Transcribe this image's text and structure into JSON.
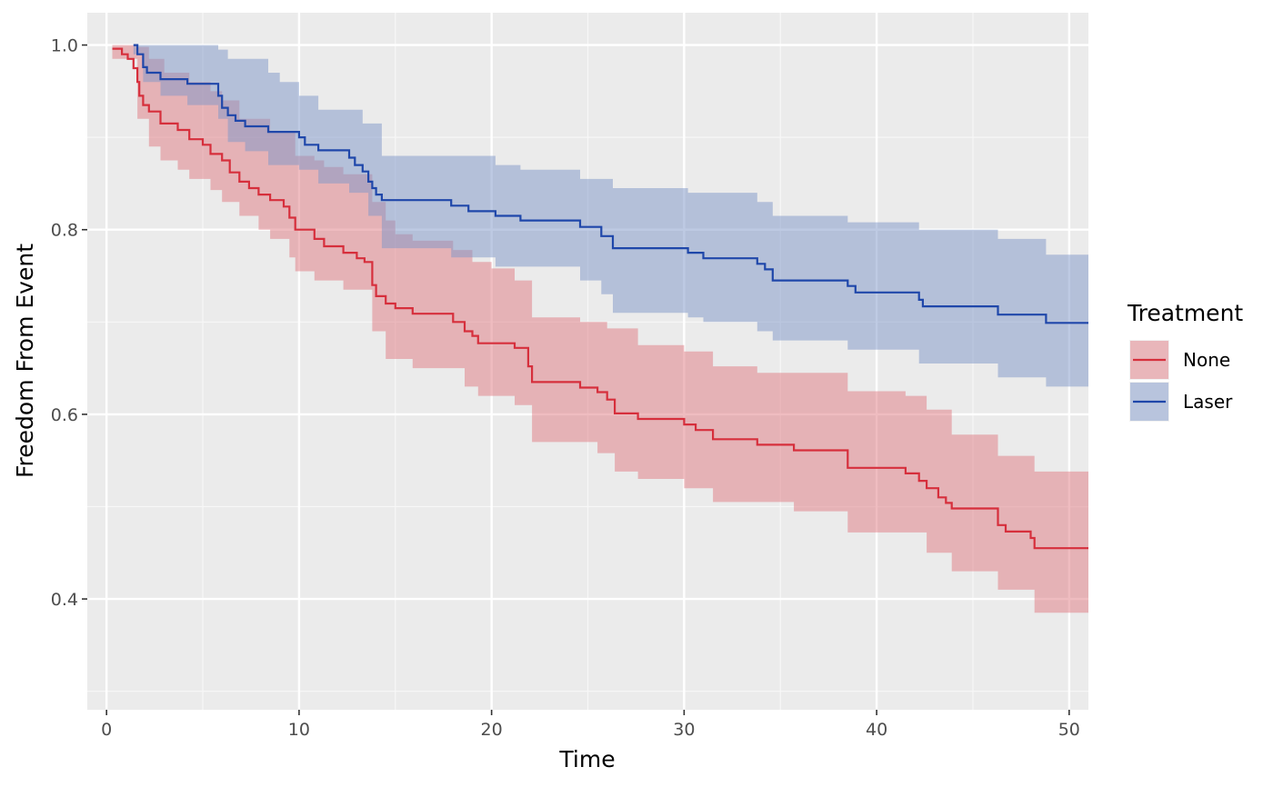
{
  "chart_data": {
    "type": "line",
    "subtype": "kaplan-meier step curves with confidence bands",
    "xlabel": "Time",
    "ylabel": "Freedom From Event",
    "xlim": [
      -1,
      51
    ],
    "ylim": [
      0.28,
      1.035
    ],
    "x_ticks": [
      0,
      10,
      20,
      30,
      40,
      50
    ],
    "x_tick_labels": [
      "0",
      "10",
      "20",
      "30",
      "40",
      "50"
    ],
    "y_ticks": [
      0.4,
      0.6,
      0.8,
      1.0
    ],
    "y_tick_labels": [
      "0.4",
      "0.6",
      "0.8",
      "1.0"
    ],
    "grid": true,
    "panel_background": "#ebebeb",
    "legend": {
      "title": "Treatment",
      "placement": "right",
      "entries": [
        "None",
        "Laser"
      ]
    },
    "series": [
      {
        "name": "None",
        "color": "#d62f3c",
        "band_color": "#e07a82",
        "steps": [
          [
            0.3,
            0.996
          ],
          [
            0.8,
            0.99
          ],
          [
            1.1,
            0.985
          ],
          [
            1.4,
            0.975
          ],
          [
            1.6,
            0.96
          ],
          [
            1.7,
            0.945
          ],
          [
            1.9,
            0.935
          ],
          [
            2.2,
            0.928
          ],
          [
            2.8,
            0.915
          ],
          [
            3.7,
            0.908
          ],
          [
            4.3,
            0.898
          ],
          [
            5.0,
            0.892
          ],
          [
            5.4,
            0.882
          ],
          [
            6.0,
            0.875
          ],
          [
            6.4,
            0.862
          ],
          [
            6.9,
            0.852
          ],
          [
            7.4,
            0.845
          ],
          [
            7.9,
            0.838
          ],
          [
            8.5,
            0.832
          ],
          [
            9.2,
            0.825
          ],
          [
            9.5,
            0.813
          ],
          [
            9.8,
            0.8
          ],
          [
            10.8,
            0.79
          ],
          [
            11.3,
            0.782
          ],
          [
            12.3,
            0.775
          ],
          [
            13.0,
            0.769
          ],
          [
            13.4,
            0.765
          ],
          [
            13.8,
            0.74
          ],
          [
            14.0,
            0.728
          ],
          [
            14.5,
            0.72
          ],
          [
            15.0,
            0.715
          ],
          [
            15.9,
            0.709
          ],
          [
            18.0,
            0.7
          ],
          [
            18.6,
            0.69
          ],
          [
            19.0,
            0.685
          ],
          [
            19.3,
            0.677
          ],
          [
            21.2,
            0.672
          ],
          [
            21.9,
            0.652
          ],
          [
            22.1,
            0.635
          ],
          [
            24.6,
            0.629
          ],
          [
            25.5,
            0.624
          ],
          [
            26.0,
            0.616
          ],
          [
            26.4,
            0.601
          ],
          [
            27.6,
            0.595
          ],
          [
            30.0,
            0.589
          ],
          [
            30.6,
            0.583
          ],
          [
            31.5,
            0.573
          ],
          [
            33.8,
            0.567
          ],
          [
            35.7,
            0.561
          ],
          [
            38.5,
            0.542
          ],
          [
            41.5,
            0.536
          ],
          [
            42.2,
            0.528
          ],
          [
            42.6,
            0.52
          ],
          [
            43.2,
            0.51
          ],
          [
            43.6,
            0.504
          ],
          [
            43.9,
            0.498
          ],
          [
            46.3,
            0.48
          ],
          [
            46.7,
            0.473
          ],
          [
            48.0,
            0.466
          ],
          [
            48.2,
            0.455
          ],
          [
            51.0,
            0.455
          ]
        ],
        "band_upper": [
          [
            0.3,
            1.0
          ],
          [
            1.6,
            0.998
          ],
          [
            2.2,
            0.985
          ],
          [
            3.0,
            0.97
          ],
          [
            4.3,
            0.96
          ],
          [
            5.4,
            0.95
          ],
          [
            6.0,
            0.94
          ],
          [
            6.9,
            0.92
          ],
          [
            8.5,
            0.905
          ],
          [
            9.8,
            0.88
          ],
          [
            10.8,
            0.875
          ],
          [
            11.3,
            0.868
          ],
          [
            12.3,
            0.86
          ],
          [
            13.8,
            0.83
          ],
          [
            14.5,
            0.81
          ],
          [
            15.0,
            0.795
          ],
          [
            15.9,
            0.788
          ],
          [
            18.0,
            0.778
          ],
          [
            19.0,
            0.765
          ],
          [
            20.0,
            0.758
          ],
          [
            21.2,
            0.745
          ],
          [
            22.1,
            0.705
          ],
          [
            24.6,
            0.7
          ],
          [
            26.0,
            0.693
          ],
          [
            27.6,
            0.675
          ],
          [
            30.0,
            0.668
          ],
          [
            31.5,
            0.652
          ],
          [
            33.8,
            0.645
          ],
          [
            38.5,
            0.625
          ],
          [
            41.5,
            0.62
          ],
          [
            42.6,
            0.605
          ],
          [
            43.9,
            0.578
          ],
          [
            46.3,
            0.555
          ],
          [
            48.2,
            0.538
          ],
          [
            51.0,
            0.538
          ]
        ],
        "band_lower": [
          [
            0.3,
            0.985
          ],
          [
            1.6,
            0.92
          ],
          [
            2.2,
            0.89
          ],
          [
            2.8,
            0.875
          ],
          [
            3.7,
            0.865
          ],
          [
            4.3,
            0.855
          ],
          [
            5.4,
            0.843
          ],
          [
            6.0,
            0.83
          ],
          [
            6.9,
            0.815
          ],
          [
            7.9,
            0.8
          ],
          [
            8.5,
            0.79
          ],
          [
            9.5,
            0.77
          ],
          [
            9.8,
            0.755
          ],
          [
            10.8,
            0.745
          ],
          [
            12.3,
            0.735
          ],
          [
            13.8,
            0.69
          ],
          [
            14.5,
            0.66
          ],
          [
            15.9,
            0.65
          ],
          [
            18.6,
            0.63
          ],
          [
            19.3,
            0.62
          ],
          [
            21.2,
            0.61
          ],
          [
            22.1,
            0.57
          ],
          [
            25.5,
            0.558
          ],
          [
            26.4,
            0.538
          ],
          [
            27.6,
            0.53
          ],
          [
            30.0,
            0.52
          ],
          [
            31.5,
            0.505
          ],
          [
            35.7,
            0.495
          ],
          [
            38.5,
            0.472
          ],
          [
            42.6,
            0.45
          ],
          [
            43.9,
            0.43
          ],
          [
            46.3,
            0.41
          ],
          [
            48.2,
            0.385
          ],
          [
            51.0,
            0.385
          ]
        ]
      },
      {
        "name": "Laser",
        "color": "#1f47aa",
        "band_color": "#7e95c8",
        "steps": [
          [
            1.4,
            1.0
          ],
          [
            1.6,
            0.99
          ],
          [
            1.9,
            0.976
          ],
          [
            2.1,
            0.97
          ],
          [
            2.8,
            0.963
          ],
          [
            4.2,
            0.958
          ],
          [
            5.8,
            0.945
          ],
          [
            6.0,
            0.932
          ],
          [
            6.3,
            0.924
          ],
          [
            6.7,
            0.918
          ],
          [
            7.2,
            0.912
          ],
          [
            8.4,
            0.906
          ],
          [
            10.0,
            0.9
          ],
          [
            10.3,
            0.892
          ],
          [
            11.0,
            0.886
          ],
          [
            12.6,
            0.878
          ],
          [
            12.9,
            0.87
          ],
          [
            13.3,
            0.863
          ],
          [
            13.6,
            0.852
          ],
          [
            13.8,
            0.845
          ],
          [
            14.0,
            0.838
          ],
          [
            14.3,
            0.832
          ],
          [
            17.9,
            0.826
          ],
          [
            18.8,
            0.82
          ],
          [
            20.2,
            0.815
          ],
          [
            21.5,
            0.81
          ],
          [
            24.6,
            0.803
          ],
          [
            25.7,
            0.793
          ],
          [
            26.3,
            0.78
          ],
          [
            30.2,
            0.775
          ],
          [
            31.0,
            0.769
          ],
          [
            33.8,
            0.763
          ],
          [
            34.2,
            0.757
          ],
          [
            34.6,
            0.745
          ],
          [
            38.5,
            0.739
          ],
          [
            38.9,
            0.732
          ],
          [
            42.2,
            0.724
          ],
          [
            42.4,
            0.717
          ],
          [
            46.3,
            0.708
          ],
          [
            48.8,
            0.699
          ],
          [
            51.0,
            0.699
          ]
        ],
        "band_upper": [
          [
            1.4,
            1.0
          ],
          [
            5.8,
            0.995
          ],
          [
            6.3,
            0.985
          ],
          [
            8.4,
            0.97
          ],
          [
            9.0,
            0.96
          ],
          [
            10.0,
            0.945
          ],
          [
            11.0,
            0.93
          ],
          [
            13.3,
            0.915
          ],
          [
            14.3,
            0.88
          ],
          [
            20.2,
            0.87
          ],
          [
            21.5,
            0.865
          ],
          [
            24.6,
            0.855
          ],
          [
            26.3,
            0.845
          ],
          [
            30.2,
            0.84
          ],
          [
            33.8,
            0.83
          ],
          [
            34.6,
            0.815
          ],
          [
            38.5,
            0.808
          ],
          [
            42.2,
            0.8
          ],
          [
            46.3,
            0.79
          ],
          [
            48.8,
            0.773
          ],
          [
            51.0,
            0.773
          ]
        ],
        "band_lower": [
          [
            1.4,
            0.99
          ],
          [
            1.9,
            0.96
          ],
          [
            2.8,
            0.945
          ],
          [
            4.2,
            0.935
          ],
          [
            5.8,
            0.92
          ],
          [
            6.3,
            0.895
          ],
          [
            7.2,
            0.885
          ],
          [
            8.4,
            0.87
          ],
          [
            10.0,
            0.865
          ],
          [
            11.0,
            0.85
          ],
          [
            12.6,
            0.84
          ],
          [
            13.6,
            0.815
          ],
          [
            14.3,
            0.78
          ],
          [
            17.9,
            0.77
          ],
          [
            20.2,
            0.76
          ],
          [
            24.6,
            0.745
          ],
          [
            25.7,
            0.73
          ],
          [
            26.3,
            0.71
          ],
          [
            30.2,
            0.705
          ],
          [
            31.0,
            0.7
          ],
          [
            33.8,
            0.69
          ],
          [
            34.6,
            0.68
          ],
          [
            38.5,
            0.67
          ],
          [
            42.2,
            0.655
          ],
          [
            46.3,
            0.64
          ],
          [
            48.8,
            0.63
          ],
          [
            51.0,
            0.63
          ]
        ]
      }
    ]
  }
}
